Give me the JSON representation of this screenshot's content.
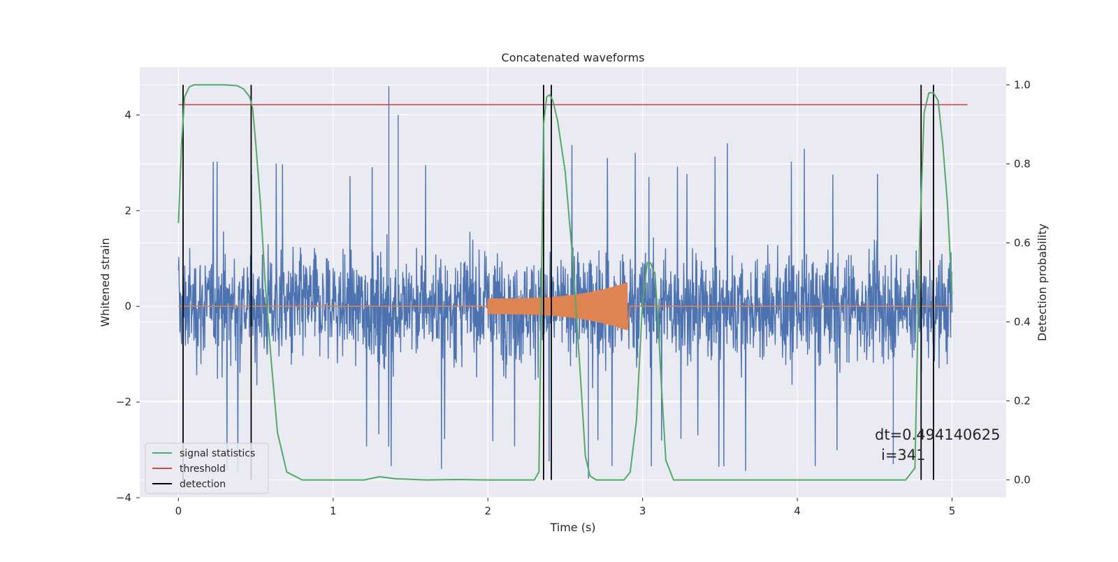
{
  "chart_data": {
    "type": "line",
    "title": "Concatenated waveforms",
    "xlabel": "Time (s)",
    "ylabel_left": "Whitened strain",
    "ylabel_right": "Detection probability",
    "xlim": [
      -0.25,
      5.35
    ],
    "ylim_left": [
      -4.0,
      5.0
    ],
    "ylim_right": [
      -0.045,
      1.045
    ],
    "x_ticks": [
      0,
      1,
      2,
      3,
      4,
      5
    ],
    "y_ticks_left": [
      -4,
      -2,
      0,
      2,
      4
    ],
    "y_ticks_left_labels": [
      "−4",
      "−2",
      "0",
      "2",
      "4"
    ],
    "y_ticks_right": [
      0.0,
      0.2,
      0.4,
      0.6,
      0.8,
      1.0
    ],
    "y_ticks_right_labels": [
      "0.0",
      "0.2",
      "0.4",
      "0.6",
      "0.8",
      "1.0"
    ],
    "grid": true,
    "legend_position": "bottom-left",
    "background": "#eaeaf2",
    "series": [
      {
        "key": "strain",
        "axis": "left",
        "color": "#4c72b0",
        "x_range": [
          0,
          5
        ],
        "typical_peak": 2.2,
        "max_peak": 4.6,
        "min_peak": -3.9
      },
      {
        "key": "injected",
        "axis": "left",
        "color": "#dd8452",
        "x_range": [
          0,
          5
        ],
        "chirp_start": 2.0,
        "chirp_end": 2.9,
        "start_amp": 0.3,
        "peak_amp": 0.5
      },
      {
        "key": "stat",
        "name": "signal statistics",
        "axis": "right",
        "color": "#55a868",
        "x": [
          0,
          0.02,
          0.04,
          0.07,
          0.1,
          0.15,
          0.2,
          0.3,
          0.38,
          0.42,
          0.46,
          0.48,
          0.5,
          0.53,
          0.56,
          0.6,
          0.64,
          0.7,
          0.8,
          1.0,
          1.2,
          1.3,
          1.4,
          1.6,
          1.8,
          2.0,
          2.2,
          2.3,
          2.33,
          2.36,
          2.38,
          2.4,
          2.42,
          2.45,
          2.5,
          2.55,
          2.6,
          2.63,
          2.66,
          2.7,
          2.8,
          2.88,
          2.92,
          2.96,
          3.0,
          3.03,
          3.05,
          3.08,
          3.1,
          3.12,
          3.15,
          3.2,
          3.5,
          4.0,
          4.5,
          4.7,
          4.76,
          4.79,
          4.82,
          4.85,
          4.88,
          4.91,
          4.94,
          4.97,
          5.0
        ],
        "y": [
          0.65,
          0.85,
          0.97,
          0.995,
          1.0,
          1.0,
          1.0,
          1.0,
          0.998,
          0.99,
          0.97,
          0.94,
          0.85,
          0.7,
          0.5,
          0.3,
          0.12,
          0.02,
          0.0,
          0.0,
          0.0,
          0.008,
          0.003,
          0.0,
          0.001,
          0.0,
          0.0,
          0.0,
          0.02,
          0.9,
          0.97,
          0.975,
          0.96,
          0.91,
          0.78,
          0.55,
          0.25,
          0.06,
          0.01,
          0.0,
          0.0,
          0.0,
          0.02,
          0.15,
          0.45,
          0.55,
          0.55,
          0.52,
          0.4,
          0.25,
          0.05,
          0.0,
          0.0,
          0.0,
          0.0,
          0.0,
          0.03,
          0.6,
          0.93,
          0.98,
          0.98,
          0.96,
          0.85,
          0.7,
          0.47
        ]
      },
      {
        "key": "threshold",
        "name": "threshold",
        "axis": "right",
        "color": "#c44e52",
        "x": [
          0,
          5.1
        ],
        "y": [
          0.95,
          0.95
        ]
      },
      {
        "key": "detection",
        "name": "detection",
        "axis": "right",
        "color": "#000000",
        "x": [
          0.03,
          0.47,
          2.36,
          2.41,
          4.8,
          4.88
        ],
        "y_range": [
          0,
          1
        ]
      }
    ],
    "legend": [
      "signal statistics",
      "threshold",
      "detection"
    ],
    "annotation": {
      "line1": "dt=0.494140625",
      "line2": "i=341"
    }
  }
}
